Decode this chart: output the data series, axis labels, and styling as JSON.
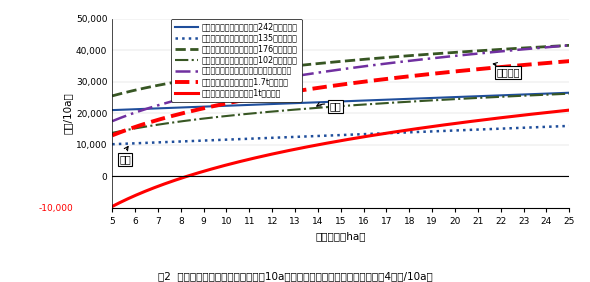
{
  "title": "図2  作物別・単収別・作付規模別の10a当たり所得（自作地の場合、助成は4万円/10a）",
  "ylabel": "（円/10a）",
  "xlabel": "作付規模（ha）",
  "x_min": 5,
  "x_max": 25,
  "y_min": -10000,
  "y_max": 50000,
  "yticks": [
    0,
    10000,
    20000,
    30000,
    40000,
    50000
  ],
  "xticks": [
    5,
    6,
    7,
    8,
    9,
    10,
    11,
    12,
    13,
    14,
    15,
    16,
    17,
    18,
    19,
    20,
    21,
    22,
    23,
    24,
    25
  ],
  "lines": [
    {
      "label": "大麦所得（新潟県平均単収242㎏の場合）",
      "color": "#1f4e9b",
      "linestyle": "solid",
      "linewidth": 1.5,
      "y_at_5": 21000,
      "y_at_25": 26500,
      "type": "linear"
    },
    {
      "label": "大麦所得（市町村最低単収135㎏の場合）",
      "color": "#1f4e9b",
      "linestyle": "dotted",
      "linewidth": 1.8,
      "y_at_5": 10200,
      "y_at_25": 16000,
      "type": "linear"
    },
    {
      "label": "大豆所得（新潟県平均単収176㎏の場合）",
      "color": "#375623",
      "linestyle": "dashed",
      "linewidth": 2.0,
      "y_at_5": 25500,
      "y_at_25": 41500,
      "type": "log"
    },
    {
      "label": "大豆所得（市町村最低単収102㎏の場合）",
      "color": "#375623",
      "linestyle": "dashdot",
      "linewidth": 1.5,
      "y_at_5": 13800,
      "y_at_25": 26200,
      "type": "log"
    },
    {
      "label": "飼料イネ所得（後作コシ作付で２万円増）",
      "color": "#7030a0",
      "linestyle": "loosedash",
      "linewidth": 1.8,
      "y_at_5": 17500,
      "y_at_25": 41500,
      "type": "log"
    },
    {
      "label": "飼料イネ所得（乾物単収1.7tの場合）",
      "color": "#ff0000",
      "linestyle": "dashed",
      "linewidth": 2.8,
      "y_at_5": 13000,
      "y_at_25": 36500,
      "type": "log"
    },
    {
      "label": "飼料イネ所得（乾物単収1tの場合）",
      "color": "#ff0000",
      "linestyle": "solid",
      "linewidth": 2.2,
      "y_at_5": -9500,
      "y_at_25": 21000,
      "type": "log"
    }
  ],
  "background_color": "#ffffff"
}
